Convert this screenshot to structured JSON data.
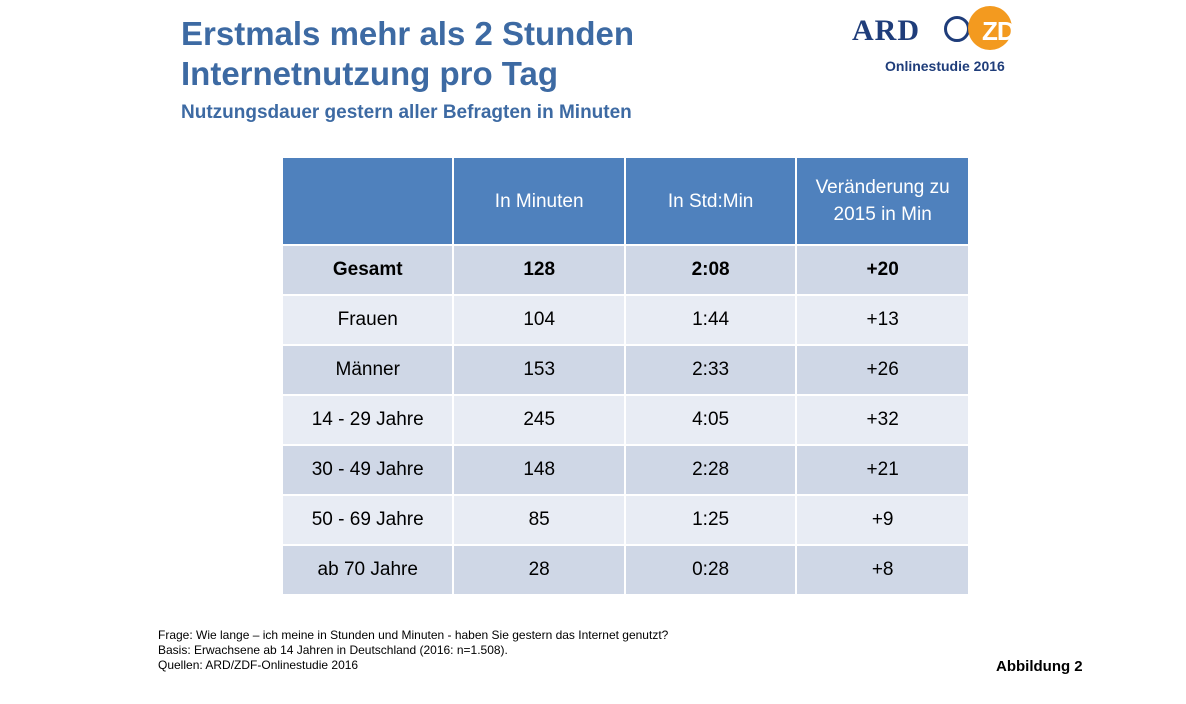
{
  "title_lines": [
    "Erstmals mehr als 2 Stunden",
    "Internetnutzung pro Tag"
  ],
  "subtitle": "Nutzungsdauer gestern aller Befragten in Minuten",
  "logo": {
    "ard_text": "ARD",
    "zdf_text": "ZDF",
    "caption": "Onlinestudie 2016",
    "colors": {
      "ard": "#1f3d7a",
      "zdf": "#f39a1f"
    }
  },
  "table": {
    "headers": [
      "",
      "In Minuten",
      "In Std:Min",
      "Veränderung zu 2015 in Min"
    ],
    "rows": [
      [
        "Gesamt",
        "128",
        "2:08",
        "+20"
      ],
      [
        "Frauen",
        "104",
        "1:44",
        "+13"
      ],
      [
        "Männer",
        "153",
        "2:33",
        "+26"
      ],
      [
        "14 - 29 Jahre",
        "245",
        "4:05",
        "+32"
      ],
      [
        "30 - 49 Jahre",
        "148",
        "2:28",
        "+21"
      ],
      [
        "50 - 69 Jahre",
        "85",
        "1:25",
        "+9"
      ],
      [
        "ab 70 Jahre",
        "28",
        "0:28",
        "+8"
      ]
    ],
    "colors": {
      "header": "#4f81bd",
      "row_dark": "#cfd7e6",
      "row_light": "#e8ecf4"
    }
  },
  "footnotes": [
    "Frage: Wie lange – ich meine in Stunden und Minuten - haben Sie gestern das Internet genutzt?",
    "Basis: Erwachsene ab 14 Jahren in Deutschland (2016: n=1.508).",
    "Quellen: ARD/ZDF-Onlinestudie 2016"
  ],
  "figure_label": "Abbildung 2"
}
